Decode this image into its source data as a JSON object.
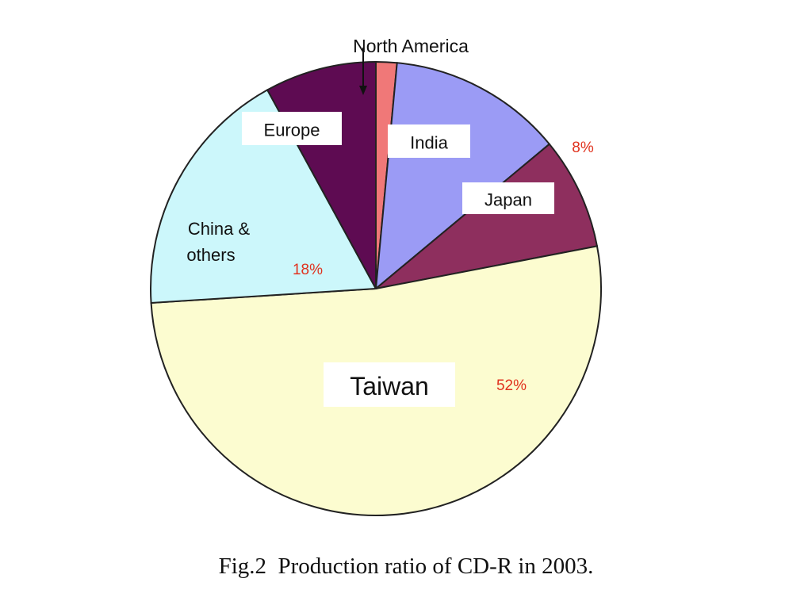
{
  "chart_data": {
    "type": "pie",
    "slices": [
      {
        "name": "North America",
        "value": 1.5,
        "color": "#f07878"
      },
      {
        "name": "India",
        "value": 12.5,
        "color": "#9b9bf5"
      },
      {
        "name": "Japan",
        "value": 8,
        "color": "#8e2f5e",
        "value_label": "8%"
      },
      {
        "name": "Taiwan",
        "value": 52,
        "color": "#fcfcd0",
        "value_label": "52%"
      },
      {
        "name": "China & others",
        "value": 18,
        "color": "#ccf7fb",
        "value_label": "18%"
      },
      {
        "name": "Europe",
        "value": 8,
        "color": "#5e0b52"
      }
    ],
    "start_angle_deg": 0,
    "direction": "clockwise",
    "value_label_color": "#e0321e"
  },
  "caption": "Fig.2  Production ratio of CD-R in 2003."
}
